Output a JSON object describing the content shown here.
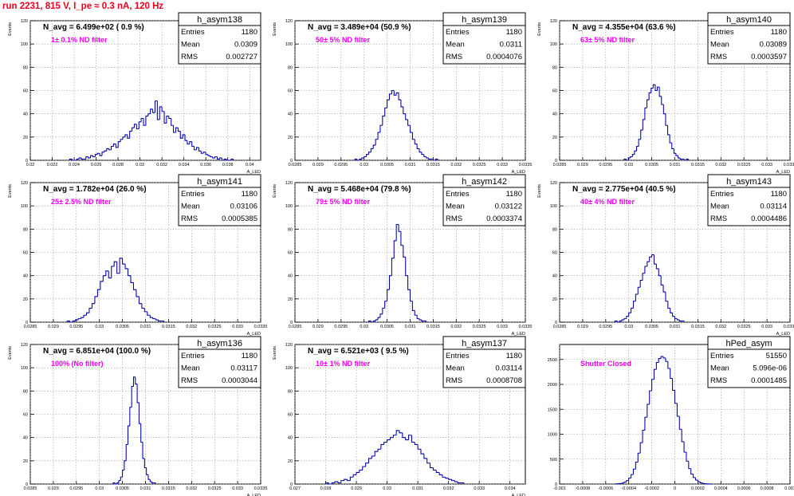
{
  "header": {
    "run_title": "run 2231,   815 V, I_pe ≈ 0.3 nA, 120 Hz"
  },
  "stat_labels": {
    "entries": "Entries",
    "mean": "Mean",
    "rms": "RMS"
  },
  "colors": {
    "histogram": "#0000aa",
    "filter_text": "#f000f0",
    "title_text": "#e8001c"
  },
  "chart_data": [
    {
      "type": "bar",
      "name": "h_asym138",
      "avg_label": "N_avg = 6.499e+02 ( 0.9 %)",
      "filter_label": "1± 0.1% ND filter",
      "stats": {
        "entries": "1180",
        "mean": "0.0309",
        "rms": "0.002727"
      },
      "ylabel": "Events",
      "xlabel": "A_LED",
      "xlim": [
        0.02,
        0.041
      ],
      "ylim": [
        0,
        120
      ],
      "xticks": [
        0.02,
        0.022,
        0.024,
        0.026,
        0.028,
        0.03,
        0.032,
        0.034,
        0.036,
        0.038,
        0.04
      ],
      "xtick_labels": [
        "0.02",
        "0.022",
        "0.024",
        "0.026",
        "0.028",
        "0.03",
        "0.032",
        "0.034",
        "0.036",
        "0.038",
        "0.04"
      ],
      "yticks": [
        0,
        20,
        40,
        60,
        80,
        100,
        120
      ],
      "ytick_labels": [
        "0",
        "20",
        "40",
        "60",
        "80",
        "100",
        "120"
      ],
      "x_start": 0.0236,
      "bin_width": 0.00021,
      "values": [
        1,
        0,
        0,
        1,
        2,
        1,
        1,
        3,
        2,
        4,
        3,
        5,
        6,
        4,
        7,
        8,
        10,
        9,
        12,
        14,
        11,
        16,
        18,
        20,
        22,
        19,
        25,
        28,
        31,
        27,
        33,
        36,
        30,
        38,
        40,
        44,
        41,
        51,
        35,
        46,
        42,
        32,
        38,
        36,
        30,
        24,
        28,
        25,
        19,
        22,
        17,
        14,
        16,
        12,
        9,
        11,
        8,
        6,
        7,
        5,
        4,
        3,
        2,
        3,
        1,
        2,
        0,
        1,
        0,
        0,
        1
      ]
    },
    {
      "type": "bar",
      "name": "h_asym139",
      "avg_label": "N_avg = 3.489e+04 (50.9 %)",
      "filter_label": "50± 5% ND filter",
      "stats": {
        "entries": "1180",
        "mean": "0.0311",
        "rms": "0.0004076"
      },
      "ylabel": "Events",
      "xlabel": "A_LED",
      "xlim": [
        0.0285,
        0.0335
      ],
      "ylim": [
        0,
        120
      ],
      "xticks": [
        0.0285,
        0.029,
        0.0295,
        0.03,
        0.0305,
        0.031,
        0.0315,
        0.032,
        0.0325,
        0.033,
        0.0335
      ],
      "xtick_labels": [
        "0.0285",
        "0.029",
        "0.0295",
        "0.03",
        "0.0305",
        "0.031",
        "0.0315",
        "0.032",
        "0.0325",
        "0.033",
        "0.0335"
      ],
      "yticks": [
        0,
        20,
        40,
        60,
        80,
        100,
        120
      ],
      "ytick_labels": [
        "0",
        "20",
        "40",
        "60",
        "80",
        "100",
        "120"
      ],
      "x_start": 0.0298,
      "bin_width": 5e-05,
      "values": [
        1,
        0,
        1,
        2,
        3,
        5,
        7,
        10,
        13,
        18,
        24,
        30,
        38,
        45,
        52,
        57,
        60,
        56,
        58,
        52,
        46,
        40,
        35,
        30,
        24,
        18,
        14,
        10,
        7,
        5,
        3,
        2,
        1,
        1,
        0,
        1
      ]
    },
    {
      "type": "bar",
      "name": "h_asym140",
      "avg_label": "N_avg = 4.355e+04 (63.6 %)",
      "filter_label": "63± 5% ND filter",
      "stats": {
        "entries": "1180",
        "mean": "0.03089",
        "rms": "0.0003597"
      },
      "ylabel": "Events",
      "xlabel": "A_LED",
      "xlim": [
        0.0285,
        0.0335
      ],
      "ylim": [
        0,
        120
      ],
      "xticks": [
        0.0285,
        0.029,
        0.0295,
        0.03,
        0.0305,
        0.031,
        0.0315,
        0.032,
        0.0325,
        0.033,
        0.0335
      ],
      "xtick_labels": [
        "0.0285",
        "0.029",
        "0.0295",
        "0.03",
        "0.0305",
        "0.031",
        "0.0315",
        "0.032",
        "0.0325",
        "0.033",
        "0.0335"
      ],
      "yticks": [
        0,
        20,
        40,
        60,
        80,
        100,
        120
      ],
      "ytick_labels": [
        "0",
        "20",
        "40",
        "60",
        "80",
        "100",
        "120"
      ],
      "x_start": 0.0299,
      "bin_width": 4.5e-05,
      "values": [
        1,
        0,
        2,
        3,
        5,
        8,
        12,
        18,
        26,
        35,
        45,
        52,
        58,
        62,
        65,
        60,
        63,
        55,
        48,
        40,
        30,
        22,
        15,
        10,
        6,
        4,
        2,
        1,
        1,
        0,
        1
      ]
    },
    {
      "type": "bar",
      "name": "h_asym141",
      "avg_label": "N_avg = 1.782e+04 (26.0 %)",
      "filter_label": "25± 2.5% ND filter",
      "stats": {
        "entries": "1180",
        "mean": "0.03106",
        "rms": "0.0005385"
      },
      "ylabel": "Events",
      "xlabel": "A_LED",
      "xlim": [
        0.0285,
        0.0335
      ],
      "ylim": [
        0,
        120
      ],
      "xticks": [
        0.0285,
        0.029,
        0.0295,
        0.03,
        0.0305,
        0.031,
        0.0315,
        0.032,
        0.0325,
        0.033,
        0.0335
      ],
      "xtick_labels": [
        "0.0285",
        "0.029",
        "0.0295",
        "0.03",
        "0.0305",
        "0.031",
        "0.0315",
        "0.032",
        "0.0325",
        "0.033",
        "0.0335"
      ],
      "yticks": [
        0,
        20,
        40,
        60,
        80,
        100,
        120
      ],
      "ytick_labels": [
        "0",
        "20",
        "40",
        "60",
        "80",
        "100",
        "120"
      ],
      "x_start": 0.0293,
      "bin_width": 6e-05,
      "values": [
        1,
        0,
        1,
        2,
        3,
        4,
        6,
        8,
        12,
        16,
        22,
        28,
        35,
        40,
        44,
        38,
        48,
        52,
        42,
        55,
        50,
        46,
        40,
        34,
        28,
        22,
        16,
        12,
        9,
        6,
        4,
        3,
        2,
        1,
        1
      ]
    },
    {
      "type": "bar",
      "name": "h_asym142",
      "avg_label": "N_avg = 5.468e+04 (79.8 %)",
      "filter_label": "79± 5% ND filter",
      "stats": {
        "entries": "1180",
        "mean": "0.03122",
        "rms": "0.0003374"
      },
      "ylabel": "Events",
      "xlabel": "A_LED",
      "xlim": [
        0.0285,
        0.0335
      ],
      "ylim": [
        0,
        120
      ],
      "xticks": [
        0.0285,
        0.029,
        0.0295,
        0.03,
        0.0305,
        0.031,
        0.0315,
        0.032,
        0.0325,
        0.033,
        0.0335
      ],
      "xtick_labels": [
        "0.0285",
        "0.029",
        "0.0295",
        "0.03",
        "0.0305",
        "0.031",
        "0.0315",
        "0.032",
        "0.0325",
        "0.033",
        "0.0335"
      ],
      "yticks": [
        0,
        20,
        40,
        60,
        80,
        100,
        120
      ],
      "ytick_labels": [
        "0",
        "20",
        "40",
        "60",
        "80",
        "100",
        "120"
      ],
      "x_start": 0.0301,
      "bin_width": 5e-05,
      "values": [
        1,
        0,
        1,
        2,
        4,
        7,
        12,
        18,
        28,
        40,
        55,
        70,
        84,
        78,
        66,
        56,
        40,
        28,
        18,
        10,
        6,
        3,
        2,
        1,
        1
      ]
    },
    {
      "type": "bar",
      "name": "h_asym143",
      "avg_label": "N_avg = 2.775e+04 (40.5 %)",
      "filter_label": "40± 4% ND filter",
      "stats": {
        "entries": "1180",
        "mean": "0.03114",
        "rms": "0.0004486"
      },
      "ylabel": "Events",
      "xlabel": "A_LED",
      "xlim": [
        0.0285,
        0.0335
      ],
      "ylim": [
        0,
        120
      ],
      "xticks": [
        0.0285,
        0.029,
        0.0295,
        0.03,
        0.0305,
        0.031,
        0.0315,
        0.032,
        0.0325,
        0.033,
        0.0335
      ],
      "xtick_labels": [
        "0.0285",
        "0.029",
        "0.0295",
        "0.03",
        "0.0305",
        "0.031",
        "0.0315",
        "0.032",
        "0.0325",
        "0.033",
        "0.0335"
      ],
      "yticks": [
        0,
        20,
        40,
        60,
        80,
        100,
        120
      ],
      "ytick_labels": [
        "0",
        "20",
        "40",
        "60",
        "80",
        "100",
        "120"
      ],
      "x_start": 0.0297,
      "bin_width": 5e-05,
      "values": [
        1,
        0,
        1,
        2,
        3,
        5,
        8,
        12,
        18,
        24,
        30,
        36,
        42,
        48,
        52,
        56,
        58,
        50,
        46,
        40,
        32,
        26,
        18,
        12,
        8,
        5,
        3,
        2,
        1,
        1
      ]
    },
    {
      "type": "bar",
      "name": "h_asym136",
      "avg_label": "N_avg = 6.851e+04 (100.0 %)",
      "filter_label": "100% (No filter)",
      "stats": {
        "entries": "1180",
        "mean": "0.03117",
        "rms": "0.0003044"
      },
      "ylabel": "Events",
      "xlabel": "A_LED",
      "xlim": [
        0.0285,
        0.0335
      ],
      "ylim": [
        0,
        120
      ],
      "xticks": [
        0.0285,
        0.029,
        0.0295,
        0.03,
        0.0305,
        0.031,
        0.0315,
        0.032,
        0.0325,
        0.033,
        0.0335
      ],
      "xtick_labels": [
        "0.0285",
        "0.029",
        "0.0295",
        "0.03",
        "0.0305",
        "0.031",
        "0.0315",
        "0.032",
        "0.0325",
        "0.033",
        "0.0335"
      ],
      "yticks": [
        0,
        20,
        40,
        60,
        80,
        100,
        120
      ],
      "ytick_labels": [
        "0",
        "20",
        "40",
        "60",
        "80",
        "100",
        "120"
      ],
      "x_start": 0.0303,
      "bin_width": 4e-05,
      "values": [
        1,
        0,
        1,
        3,
        6,
        12,
        20,
        34,
        50,
        66,
        84,
        92,
        86,
        70,
        52,
        36,
        22,
        14,
        8,
        4,
        2,
        1,
        1
      ]
    },
    {
      "type": "bar",
      "name": "h_asym137",
      "avg_label": "N_avg = 6.521e+03 ( 9.5 %)",
      "filter_label": "10± 1% ND filter",
      "stats": {
        "entries": "1180",
        "mean": "0.03114",
        "rms": "0.0008708"
      },
      "ylabel": "Events",
      "xlabel": "A_LED",
      "xlim": [
        0.027,
        0.0345
      ],
      "ylim": [
        0,
        120
      ],
      "xticks": [
        0.027,
        0.028,
        0.029,
        0.03,
        0.031,
        0.032,
        0.033,
        0.034
      ],
      "xtick_labels": [
        "0.027",
        "0.028",
        "0.029",
        "0.03",
        "0.031",
        "0.032",
        "0.033",
        "0.034"
      ],
      "yticks": [
        0,
        20,
        40,
        60,
        80,
        100,
        120
      ],
      "ytick_labels": [
        "0",
        "20",
        "40",
        "60",
        "80",
        "100",
        "120"
      ],
      "x_start": 0.028,
      "bin_width": 0.0001,
      "values": [
        1,
        0,
        1,
        2,
        1,
        3,
        4,
        3,
        6,
        8,
        10,
        12,
        15,
        18,
        22,
        24,
        28,
        30,
        34,
        36,
        38,
        40,
        42,
        46,
        44,
        40,
        38,
        42,
        36,
        34,
        30,
        26,
        22,
        18,
        14,
        12,
        10,
        8,
        6,
        5,
        4,
        3,
        2,
        1,
        1
      ]
    },
    {
      "type": "bar",
      "name": "hPed_asym",
      "avg_label": "",
      "filter_label": "Shutter Closed",
      "stats": {
        "entries": "51550",
        "mean": "5.096e-06",
        "rms": "0.0001485"
      },
      "ylabel": "",
      "xlabel": "",
      "xlim": [
        -0.001,
        0.001
      ],
      "ylim": [
        0,
        2800
      ],
      "xticks": [
        -0.001,
        -0.0008,
        -0.0006,
        -0.0004,
        -0.0002,
        0,
        0.0002,
        0.0004,
        0.0006,
        0.0008,
        0.001
      ],
      "xtick_labels": [
        "-0.001",
        "-0.0008",
        "-0.0006",
        "-0.0004",
        "-0.0002",
        "0",
        "0.0002",
        "0.0004",
        "0.0006",
        "0.0008",
        "0.001"
      ],
      "yticks": [
        0,
        500,
        1000,
        1500,
        2000,
        2500
      ],
      "ytick_labels": [
        "0",
        "500",
        "1000",
        "1500",
        "2000",
        "2500"
      ],
      "x_start": -0.00052,
      "bin_width": 2e-05,
      "values": [
        2,
        5,
        10,
        20,
        40,
        70,
        120,
        190,
        300,
        440,
        620,
        830,
        1080,
        1340,
        1600,
        1870,
        2100,
        2300,
        2440,
        2520,
        2560,
        2530,
        2460,
        2320,
        2120,
        1880,
        1620,
        1360,
        1100,
        850,
        640,
        460,
        310,
        200,
        130,
        80,
        45,
        25,
        12,
        6,
        3,
        1
      ]
    }
  ]
}
